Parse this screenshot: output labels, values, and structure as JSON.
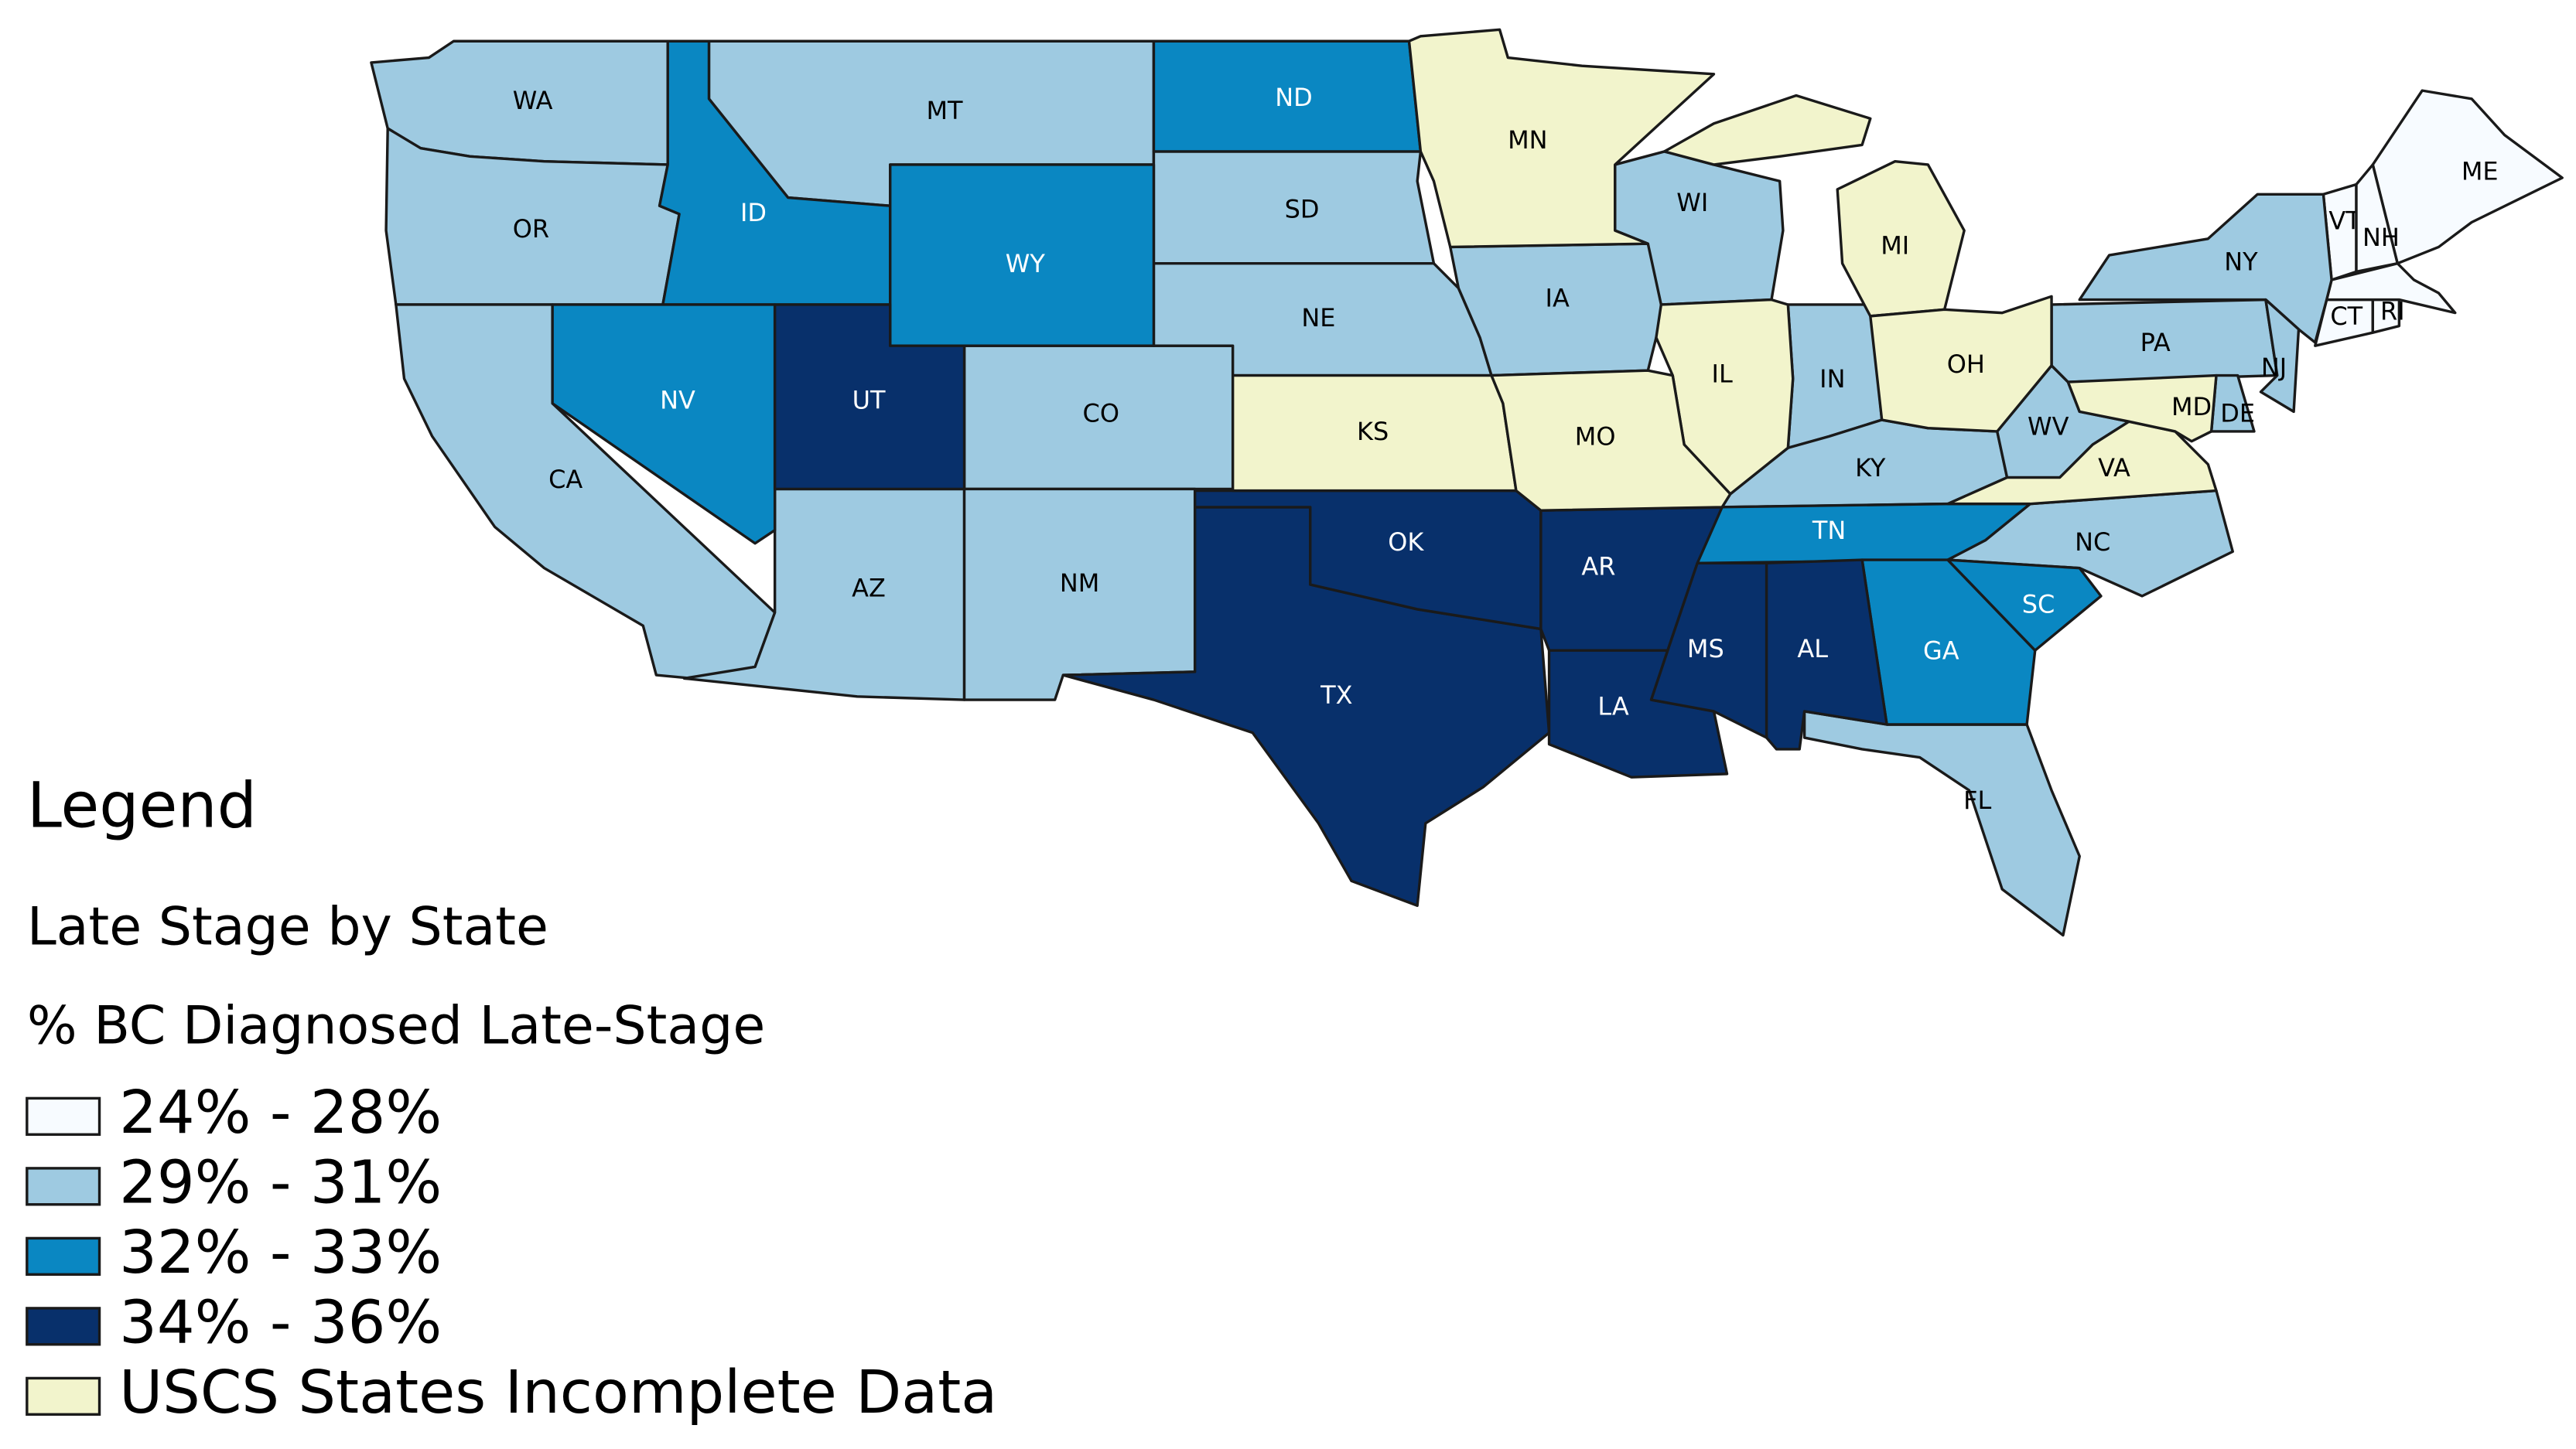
{
  "legend": {
    "title": "Legend",
    "layer": "Late Stage by State",
    "field": "% BC Diagnosed Late-Stage",
    "classes": [
      {
        "label": "24% - 28%",
        "color": "#f7fbff",
        "states": [
          "ME",
          "VT",
          "NH",
          "CT",
          "RI"
        ]
      },
      {
        "label": "29% - 31%",
        "color": "#9ecae1",
        "states": [
          "WA",
          "OR",
          "CA",
          "MT",
          "AZ",
          "CO",
          "NM",
          "SD",
          "NE",
          "IA",
          "WI",
          "IN",
          "KY",
          "WV",
          "PA",
          "NY",
          "NJ",
          "NC",
          "FL",
          "DE"
        ]
      },
      {
        "label": "32% - 33%",
        "color": "#0a87c2",
        "states": [
          "ID",
          "NV",
          "WY",
          "ND",
          "TN",
          "GA",
          "SC"
        ]
      },
      {
        "label": "34% - 36%",
        "color": "#08306b",
        "states": [
          "UT",
          "TX",
          "OK",
          "AR",
          "LA",
          "MS",
          "AL"
        ]
      },
      {
        "label": "USCS States Incomplete Data",
        "color": "#f2f4cc",
        "states": [
          "MN",
          "MI",
          "IL",
          "OH",
          "KS",
          "MO",
          "VA",
          "MD"
        ]
      }
    ]
  }
}
